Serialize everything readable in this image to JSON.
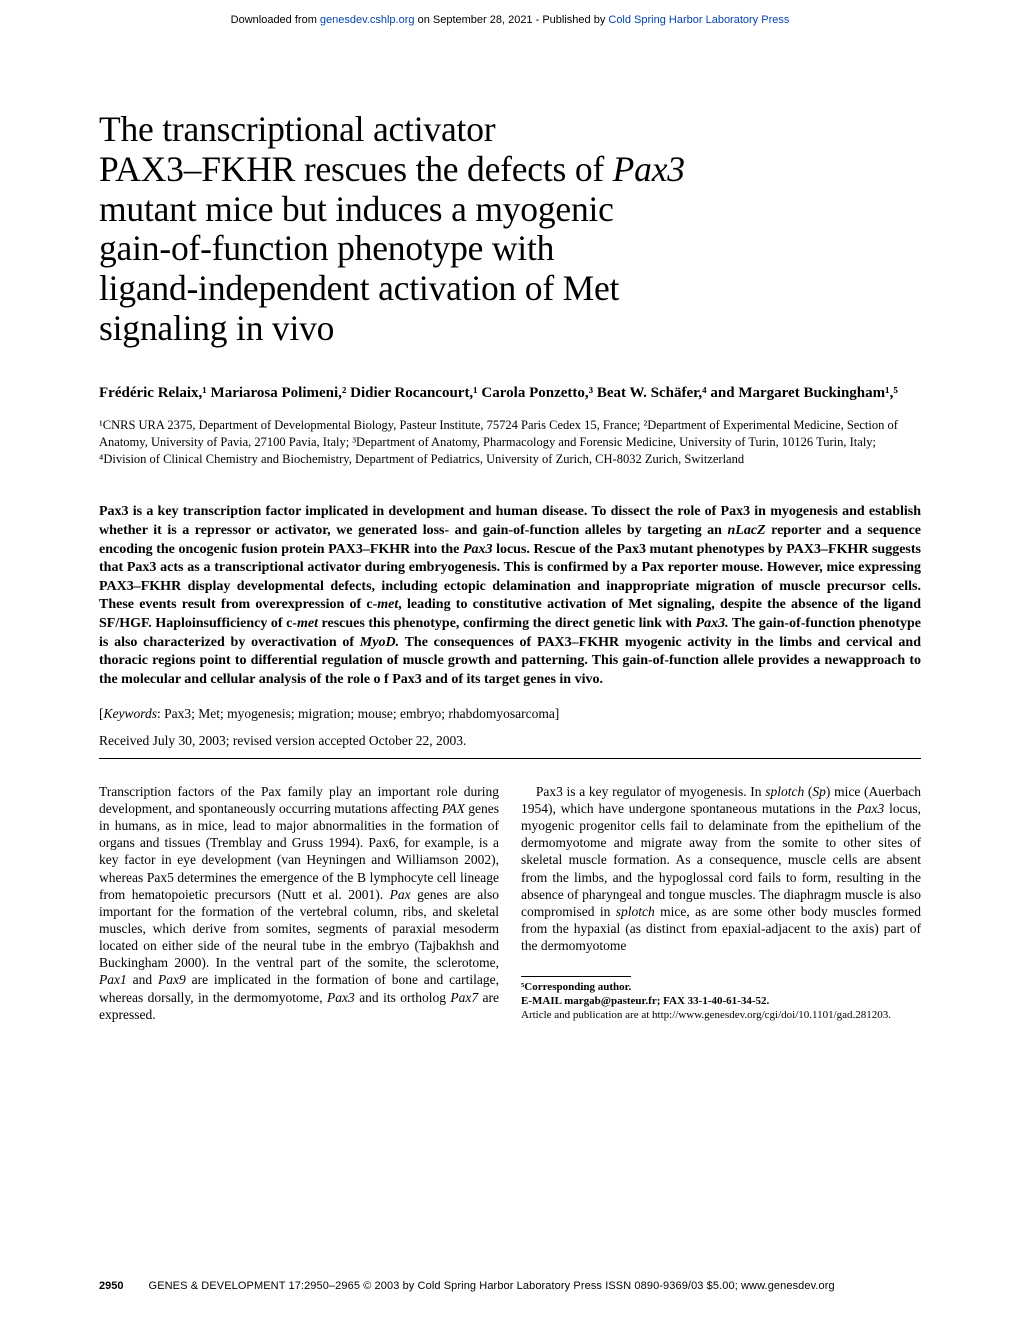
{
  "download_bar": {
    "prefix": "Downloaded from ",
    "link1": "genesdev.cshlp.org",
    "mid": " on September 28, 2021 - Published by ",
    "link2": "Cold Spring Harbor Laboratory Press"
  },
  "title": {
    "l1": "The transcriptional activator",
    "l2_a": "PAX3–FKHR rescues the defects of ",
    "l2_b": "Pax3",
    "l3": "mutant mice but induces a myogenic",
    "l4": "gain-of-function phenotype with",
    "l5": "ligand-independent activation of Met",
    "l6": "signaling in vivo"
  },
  "authors": "Frédéric Relaix,¹ Mariarosa Polimeni,² Didier Rocancourt,¹ Carola Ponzetto,³ Beat W. Schäfer,⁴ and Margaret Buckingham¹,⁵",
  "affil": "¹CNRS URA 2375, Department of Developmental Biology, Pasteur Institute, 75724 Paris Cedex 15, France; ²Department of Experimental Medicine, Section of Anatomy, University of Pavia, 27100 Pavia, Italy; ³Department of Anatomy, Pharmacology and Forensic Medicine, University of Turin, 10126 Turin, Italy; ⁴Division of Clinical Chemistry and Biochemistry, Department of Pediatrics, University of Zurich, CH-8032 Zurich, Switzerland",
  "abstract": {
    "t1": "Pax3 is a key transcription factor implicated in development and human disease. To dissect the role of Pax3 in myogenesis and establish whether it is a repressor or activator, we generated loss- and gain-of-function alleles by targeting an ",
    "i1": "nLacZ",
    "t2": " reporter and a sequence encoding the oncogenic fusion protein PAX3–FKHR into the ",
    "i2": "Pax3",
    "t3": " locus. Rescue of the Pax3 mutant phenotypes by PAX3–FKHR suggests that Pax3 acts as a transcriptional activator during embryogenesis. This is confirmed by a Pax reporter mouse. However, mice expressing PAX3–FKHR display developmental defects, including ectopic delamination and inappropriate migration of muscle precursor cells. These events result from overexpression of c-",
    "i3": "met",
    "t4": ", leading to constitutive activation of Met signaling, despite the absence of the ligand SF/HGF. Haploinsufficiency of c-",
    "i4": "met",
    "t5": " rescues this phenotype, confirming the direct genetic link with ",
    "i5": "Pax3.",
    "t6": " The gain-of-function phenotype is also characterized by overactivation of ",
    "i6": "MyoD.",
    "t7": " The consequences of PAX3–FKHR myogenic activity in the limbs and cervical and thoracic regions point to differential regulation of muscle growth and patterning. This gain-of-function allele provides a newapproach to the molecular and cellular analysis of the role o f Pax3 and of its target genes in vivo."
  },
  "keywords": {
    "label": "[",
    "ital": "Keywords",
    "rest": ": Pax3; Met; myogenesis; migration; mouse; embryo; rhabdomyosarcoma]"
  },
  "received": "Received July 30, 2003; revised version accepted October 22, 2003.",
  "body": {
    "p1a": "Transcription factors of the Pax family play an important role during development, and spontaneously occurring mutations affecting ",
    "p1b": "PAX",
    "p1c": " genes in humans, as in mice, lead to major abnormalities in the formation of organs and tissues (Tremblay and Gruss 1994). Pax6, for example, is a key factor in eye development (van Heyningen and Williamson 2002), whereas Pax5 determines the emergence of the B lymphocyte cell lineage from hematopoietic precursors (Nutt et al. 2001). ",
    "p1d": "Pax",
    "p1e": " genes are also important for the formation of the vertebral column, ribs, and skeletal muscles, which derive from somites, segments of paraxial mesoderm located on either side of the neural tube in the embryo (Tajbakhsh and Buckingham 2000). In the ventral part of the somite, the sclerotome, ",
    "p1f": "Pax1",
    "p1g": " and ",
    "p1h": "Pax9",
    "p1i": " are implicated in the formation of bone and cartilage, whereas dorsally, in the dermomyotome, ",
    "p1j": "Pax3",
    "p1k": " and its ortholog ",
    "p1l": "Pax7",
    "p1m": " are expressed.",
    "p2a": "Pax3 is a key regulator of myogenesis. In ",
    "p2b": "splotch",
    "p2c": " (",
    "p2d": "Sp",
    "p2e": ") mice (Auerbach 1954), which have undergone spontaneous mutations in the ",
    "p2f": "Pax3",
    "p2g": " locus, myogenic progenitor cells fail to delaminate from the epithelium of the dermomyotome and migrate away from the somite to other sites of skeletal muscle formation. As a consequence, muscle cells are absent from the limbs, and the hypoglossal cord fails to form, resulting in the absence of pharyngeal and tongue muscles. The diaphragm muscle is also compromised in ",
    "p2h": "splotch",
    "p2i": " mice, as are some other body muscles formed from the hypaxial (as distinct from epaxial-adjacent to the axis) part of the dermomyotome"
  },
  "footnote": {
    "corr": "⁵Corresponding author.",
    "email": "E-MAIL margab@pasteur.fr; FAX 33-1-40-61-34-52.",
    "pub": "Article and publication are at http://www.genesdev.org/cgi/doi/10.1101/gad.281203."
  },
  "footer": {
    "page": "2950",
    "rest": "GENES & DEVELOPMENT 17:2950–2965 © 2003 by Cold Spring Harbor Laboratory Press ISSN 0890-9369/03 $5.00; www.genesdev.org"
  }
}
